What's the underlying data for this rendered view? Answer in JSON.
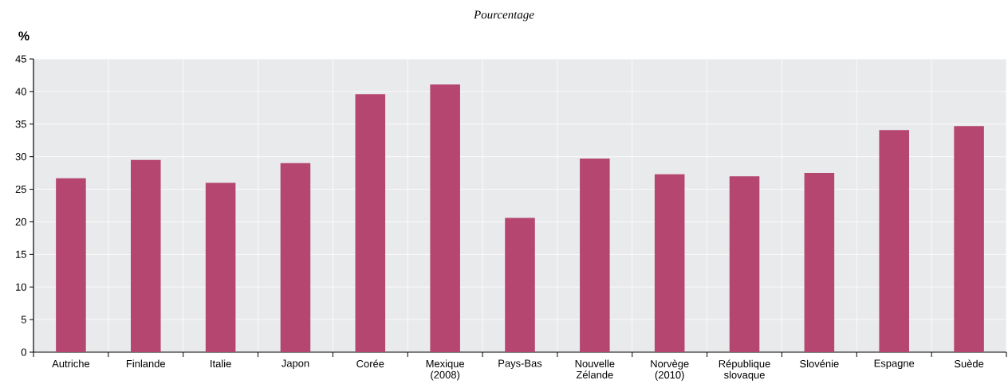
{
  "chart_data": {
    "type": "bar",
    "subtitle": "Pourcentage",
    "ylabel": "%",
    "categories": [
      "Autriche",
      "Finlande",
      "Italie",
      "Japon",
      "Corée",
      "Mexique (2008)",
      "Pays-Bas",
      "Nouvelle Zélande",
      "Norvège (2010)",
      "République slovaque",
      "Slovénie",
      "Espagne",
      "Suède"
    ],
    "values": [
      26.7,
      29.5,
      26.0,
      29.0,
      39.6,
      41.1,
      20.6,
      29.7,
      27.3,
      27.0,
      27.5,
      34.1,
      34.7
    ],
    "color": "#b5466f",
    "ylim": [
      0,
      45
    ],
    "yticks": [
      0,
      5,
      10,
      15,
      20,
      25,
      30,
      35,
      40,
      45
    ],
    "grid": true
  }
}
